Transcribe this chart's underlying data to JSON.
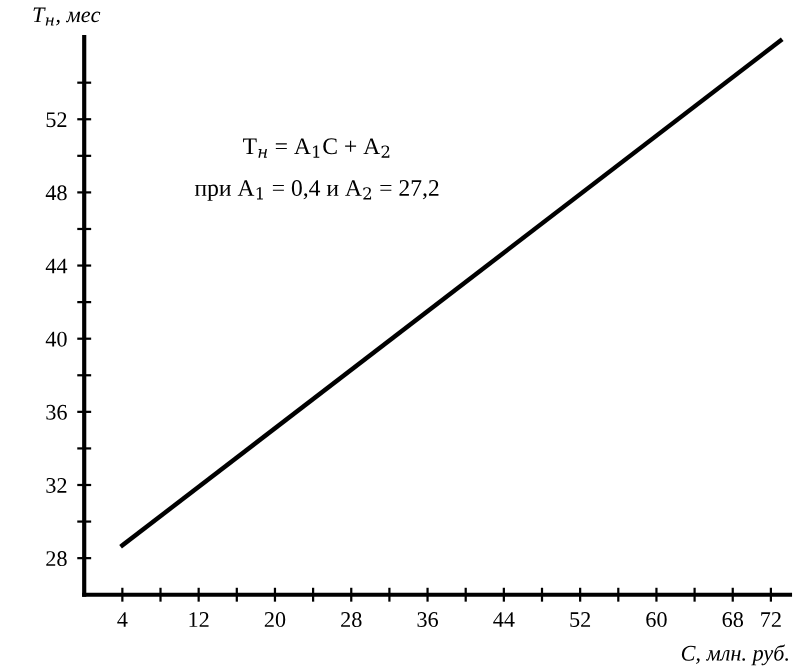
{
  "chart_data": {
    "type": "line",
    "xlabel": "C, млн. руб.",
    "ylabel": "T$_{н}$, мес",
    "annotations": [
      "T$_{н}$ = A$_{1}$C + A$_{2}$",
      "при A$_{1}$ = 0,4 и A$_{2}$ = 27,2"
    ],
    "x": [
      4,
      73
    ],
    "series": [
      {
        "color": "#000000",
        "values": [
          28.7,
          56.3
        ]
      }
    ],
    "xlim": [
      0,
      74
    ],
    "ylim": [
      26,
      56.5
    ],
    "xticks": [
      4,
      {
        "value": 8,
        "label": null
      },
      12,
      {
        "value": 16,
        "label": null
      },
      20,
      {
        "value": 24,
        "label": null
      },
      28,
      {
        "value": 32,
        "label": null
      },
      36,
      {
        "value": 40,
        "label": null
      },
      44,
      {
        "value": 48,
        "label": null
      },
      52,
      {
        "value": 56,
        "label": null
      },
      60,
      {
        "value": 64,
        "label": null
      },
      68,
      72
    ],
    "yticks": [
      28,
      {
        "value": 30,
        "label": null
      },
      32,
      {
        "value": 34,
        "label": null
      },
      36,
      {
        "value": 38,
        "label": null
      },
      40,
      {
        "value": 42,
        "label": null
      },
      44,
      {
        "value": 46,
        "label": null
      },
      48,
      {
        "value": 50,
        "label": null
      },
      52,
      {
        "value": 54,
        "label": null
      }
    ],
    "grid": false,
    "legend": false,
    "marker": "none",
    "line_style": "solid"
  }
}
